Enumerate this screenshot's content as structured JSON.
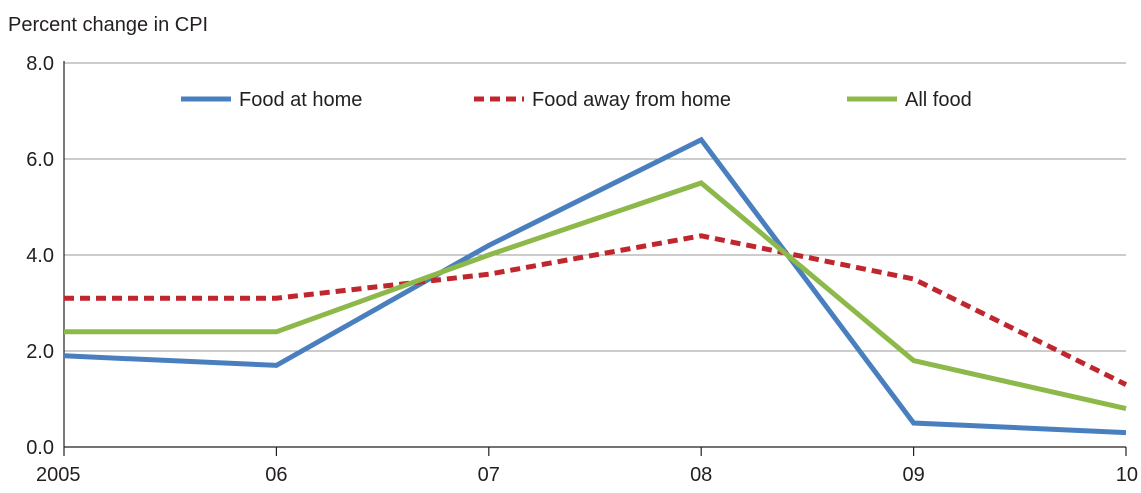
{
  "chart_data": {
    "type": "line",
    "ylabel": "Percent change in CPI",
    "categories": [
      "2005",
      "06",
      "07",
      "08",
      "09",
      "10"
    ],
    "ylim": [
      0,
      8
    ],
    "yticks": [
      "0.0",
      "2.0",
      "4.0",
      "6.0",
      "8.0"
    ],
    "grid": true,
    "legend_position": "top",
    "series": [
      {
        "name": "Food at home",
        "values": [
          1.9,
          1.7,
          4.2,
          6.4,
          0.5,
          0.3
        ],
        "color": "#4a7fbf",
        "dash": false
      },
      {
        "name": "Food away from home",
        "values": [
          3.1,
          3.1,
          3.6,
          4.4,
          3.5,
          1.3
        ],
        "color": "#c0262d",
        "dash": true
      },
      {
        "name": "All food",
        "values": [
          2.4,
          2.4,
          4.0,
          5.5,
          1.8,
          0.8
        ],
        "color": "#8db84a",
        "dash": false
      }
    ]
  }
}
